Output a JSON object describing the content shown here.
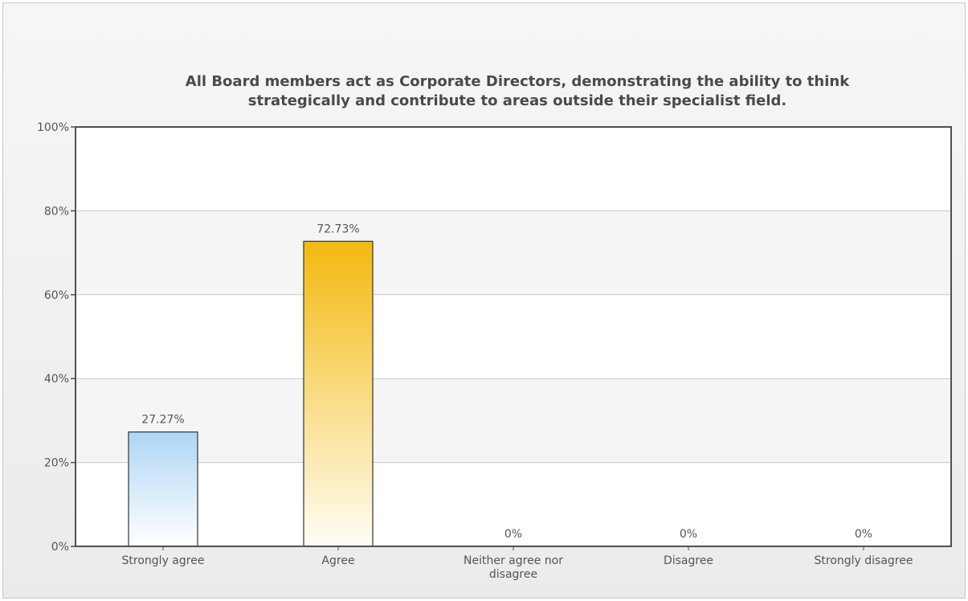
{
  "chart_data": {
    "type": "bar",
    "title": "All Board members act as Corporate Directors, demonstrating the ability to think",
    "subtitle": "strategically and contribute to areas outside their specialist field.",
    "xlabel": "",
    "ylabel": "",
    "ylim": [
      0,
      100
    ],
    "yticks": [
      0,
      20,
      40,
      60,
      80,
      100
    ],
    "ytick_labels": [
      "0%",
      "20%",
      "40%",
      "60%",
      "80%",
      "100%"
    ],
    "grid": true,
    "legend": "none",
    "categories": [
      [
        "Strongly agree"
      ],
      [
        "Agree"
      ],
      [
        "Neither agree nor",
        "disagree"
      ],
      [
        "Disagree"
      ],
      [
        "Strongly disagree"
      ]
    ],
    "values": [
      27.27,
      72.73,
      0,
      0,
      0
    ],
    "value_labels": [
      "27.27%",
      "72.73%",
      "0%",
      "0%",
      "0%"
    ],
    "colors": {
      "bar_strongly_agree": "#aed6f5",
      "bar_agree": "#f3b90f",
      "axis": "#505050",
      "grid": "#c8c8c8",
      "text": "#555555",
      "title": "#4a4a4a"
    }
  }
}
